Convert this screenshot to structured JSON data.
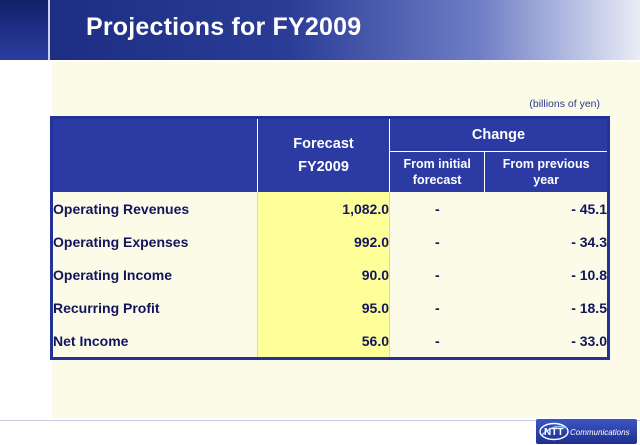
{
  "slide": {
    "title": "Projections for FY2009",
    "unit_note": "(billions of yen)"
  },
  "table": {
    "forecast_header_line1": "Forecast",
    "forecast_header_line2": "FY2009",
    "change_header": "Change",
    "change_sub1_line1": "From initial",
    "change_sub1_line2": "forecast",
    "change_sub2_line1": "From previous",
    "change_sub2_line2": "year",
    "rows": [
      {
        "label": "Operating Revenues",
        "forecast": "1,082.0",
        "from_initial": "-",
        "from_previous": "- 45.1"
      },
      {
        "label": "Operating Expenses",
        "forecast": "992.0",
        "from_initial": "-",
        "from_previous": "- 34.3"
      },
      {
        "label": "Operating Income",
        "forecast": "90.0",
        "from_initial": "-",
        "from_previous": "- 10.8"
      },
      {
        "label": "Recurring Profit",
        "forecast": "95.0",
        "from_initial": "-",
        "from_previous": "- 18.5"
      },
      {
        "label": "Net Income",
        "forecast": "56.0",
        "from_initial": "-",
        "from_previous": "- 33.0"
      }
    ]
  },
  "logo": {
    "brand": "NTT",
    "suffix": "Communications"
  },
  "colors": {
    "header_blue": "#2b3ba3",
    "forecast_highlight": "#ffff99",
    "body_text": "#12155c"
  }
}
